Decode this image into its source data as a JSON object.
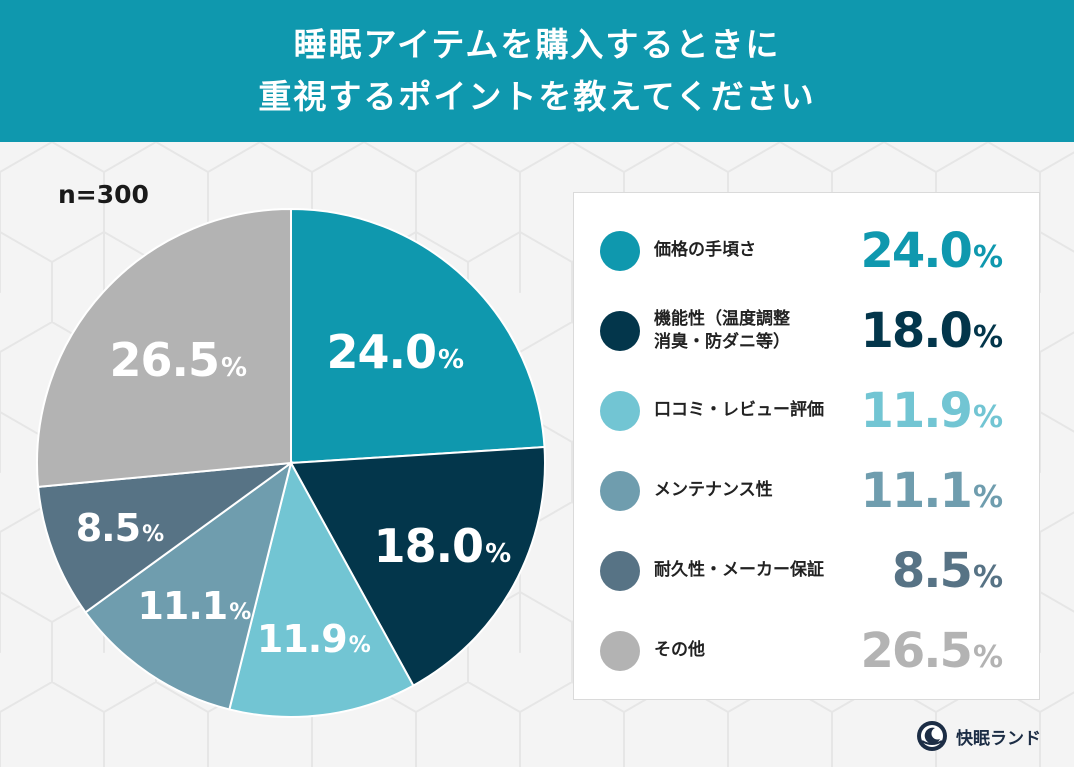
{
  "header": {
    "line1": "睡眠アイテムを購入するときに",
    "line2": "重視するポイントを教えてください"
  },
  "sample_size": "n=300",
  "brand": {
    "name": "快眠ランド",
    "logo_icon": "moon-sleep-logo-icon"
  },
  "colors": {
    "header_bg": "#0f98ae",
    "slices": [
      "#0f98ae",
      "#03364b",
      "#72c5d3",
      "#6f9dae",
      "#577385",
      "#b3b3b3"
    ]
  },
  "chart_data": {
    "type": "pie",
    "title": "睡眠アイテムを購入するときに重視するポイントを教えてください",
    "sample": "n=300",
    "unit": "%",
    "categories": [
      "価格の手頃さ",
      "機能性（温度調整・消臭・防ダニ等）",
      "口コミ・レビュー評価",
      "メンテナンス性",
      "耐久性・メーカー保証",
      "その他"
    ],
    "values": [
      24.0,
      18.0,
      11.9,
      11.1,
      8.5,
      26.5
    ],
    "value_labels": [
      "24.0",
      "18.0",
      "11.9",
      "11.1",
      "8.5",
      "26.5"
    ],
    "legend": [
      {
        "label_lines": [
          "価格の手頃さ"
        ],
        "value": "24.0",
        "unit": "%"
      },
      {
        "label_lines": [
          "機能性（温度調整",
          "消臭・防ダニ等）"
        ],
        "value": "18.0",
        "unit": "%"
      },
      {
        "label_lines": [
          "口コミ・レビュー評価"
        ],
        "value": "11.9",
        "unit": "%"
      },
      {
        "label_lines": [
          "メンテナンス性"
        ],
        "value": "11.1",
        "unit": "%"
      },
      {
        "label_lines": [
          "耐久性・メーカー保証"
        ],
        "value": "8.5",
        "unit": "%"
      },
      {
        "label_lines": [
          "その他"
        ],
        "value": "26.5",
        "unit": "%"
      }
    ],
    "legend_position": "right",
    "start_angle": "12 o'clock",
    "direction": "clockwise"
  }
}
